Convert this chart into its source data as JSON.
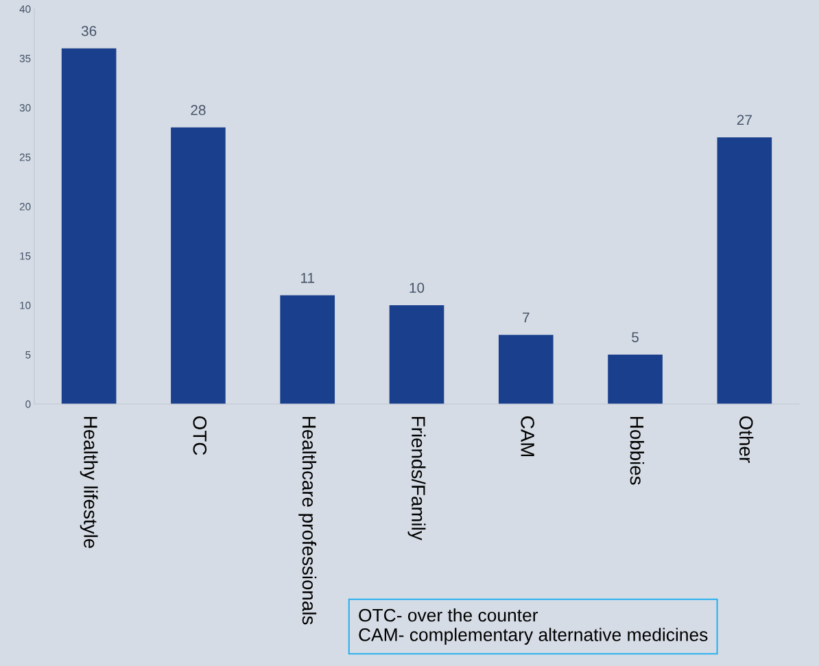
{
  "chart_data": {
    "type": "bar",
    "categories": [
      "Healthy lifestyle",
      "OTC",
      "Healthcare professionals",
      "Friends/Family",
      "CAM",
      "Hobbies",
      "Other"
    ],
    "values": [
      36,
      28,
      11,
      10,
      7,
      5,
      27
    ],
    "color": "#1a3f8c",
    "data_labels": true,
    "ylim": [
      0,
      40
    ],
    "yticks": [
      0,
      5,
      10,
      15,
      20,
      25,
      30,
      35,
      40
    ],
    "grid": false,
    "annotations": [
      "OTC- over the counter\nCAM- complementary alternative medicines"
    ]
  }
}
